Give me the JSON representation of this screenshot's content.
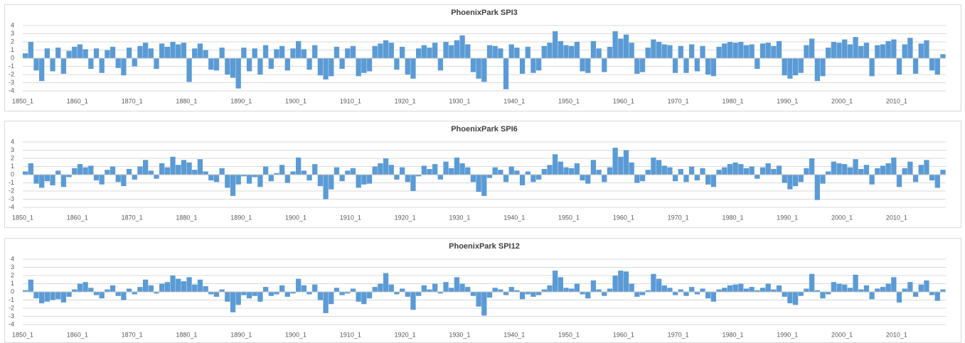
{
  "chart_data": [
    {
      "type": "bar",
      "title": "PhoenixPark SPI3",
      "color": "#5b9bd5",
      "ylim": [
        -4,
        4
      ],
      "yticks": [
        -4,
        -3,
        -2,
        -1,
        0,
        1,
        2,
        3,
        4
      ],
      "grid": true,
      "categories": [
        "1850_1",
        null,
        null,
        null,
        null,
        null,
        null,
        null,
        null,
        null,
        "1860_1",
        null,
        null,
        null,
        null,
        null,
        null,
        null,
        null,
        null,
        "1870_1",
        null,
        null,
        null,
        null,
        null,
        null,
        null,
        null,
        null,
        "1880_1",
        null,
        null,
        null,
        null,
        null,
        null,
        null,
        null,
        null,
        "1890_1",
        null,
        null,
        null,
        null,
        null,
        null,
        null,
        null,
        null,
        "1900_1",
        null,
        null,
        null,
        null,
        null,
        null,
        null,
        null,
        null,
        "1910_1",
        null,
        null,
        null,
        null,
        null,
        null,
        null,
        null,
        null,
        "1920_1",
        null,
        null,
        null,
        null,
        null,
        null,
        null,
        null,
        null,
        "1930_1",
        null,
        null,
        null,
        null,
        null,
        null,
        null,
        null,
        null,
        "1940_1",
        null,
        null,
        null,
        null,
        null,
        null,
        null,
        null,
        null,
        "1950_1",
        null,
        null,
        null,
        null,
        null,
        null,
        null,
        null,
        null,
        "1960_1",
        null,
        null,
        null,
        null,
        null,
        null,
        null,
        null,
        null,
        "1970_1",
        null,
        null,
        null,
        null,
        null,
        null,
        null,
        null,
        null,
        "1980_1",
        null,
        null,
        null,
        null,
        null,
        null,
        null,
        null,
        null,
        "1990_1",
        null,
        null,
        null,
        null,
        null,
        null,
        null,
        null,
        null,
        "2000_1",
        null,
        null,
        null,
        null,
        null,
        null,
        null,
        null,
        null,
        "2010_1",
        null,
        null,
        null,
        null,
        null,
        null,
        null,
        null
      ],
      "values": [
        0.6,
        2.0,
        -1.5,
        -2.8,
        1.2,
        -1.6,
        1.3,
        -1.9,
        0.9,
        1.4,
        1.7,
        1.1,
        -1.3,
        1.2,
        -1.8,
        1.0,
        1.4,
        -1.2,
        -2.1,
        1.3,
        -1.0,
        1.5,
        1.9,
        1.2,
        -1.3,
        1.8,
        1.4,
        2.0,
        1.7,
        1.9,
        -2.9,
        1.2,
        1.8,
        1.0,
        -1.4,
        -1.5,
        1.3,
        -2.0,
        -2.4,
        -3.7,
        1.3,
        -1.6,
        1.2,
        -2.0,
        1.6,
        -1.3,
        1.1,
        1.5,
        -1.5,
        1.2,
        2.1,
        1.1,
        -1.4,
        1.6,
        -2.1,
        -2.6,
        -2.2,
        1.4,
        -1.3,
        1.2,
        1.5,
        -2.2,
        -1.8,
        -1.6,
        1.5,
        1.8,
        2.2,
        1.9,
        -1.4,
        1.4,
        -2.0,
        -2.5,
        1.2,
        1.6,
        1.3,
        1.9,
        -1.5,
        2.0,
        1.6,
        2.2,
        2.8,
        1.7,
        -1.7,
        -2.5,
        -2.9,
        1.6,
        1.5,
        1.2,
        -3.8,
        1.7,
        1.3,
        -1.9,
        1.4,
        -1.8,
        -1.5,
        1.5,
        1.9,
        3.3,
        2.1,
        1.6,
        1.5,
        2.0,
        -1.6,
        -1.8,
        2.1,
        1.2,
        -1.7,
        1.4,
        3.3,
        2.4,
        2.9,
        1.9,
        -1.9,
        -1.7,
        1.3,
        2.3,
        2.0,
        1.7,
        1.6,
        -1.8,
        1.5,
        -1.8,
        1.7,
        -1.6,
        1.5,
        -2.0,
        -2.2,
        1.4,
        1.8,
        2.0,
        1.9,
        2.0,
        1.6,
        1.7,
        -1.3,
        1.8,
        1.9,
        1.5,
        2.1,
        -2.1,
        -2.5,
        -2.1,
        -1.8,
        1.6,
        2.4,
        -2.8,
        -2.2,
        1.3,
        2.0,
        1.9,
        2.3,
        1.7,
        2.6,
        1.5,
        1.9,
        -2.2,
        1.6,
        1.7,
        2.1,
        2.3,
        -2.0,
        1.7,
        2.5,
        -1.9,
        1.8,
        2.2,
        -1.5,
        -2.0,
        0.5
      ]
    },
    {
      "type": "bar",
      "title": "PhoenixPark SPI6",
      "color": "#5b9bd5",
      "ylim": [
        -4,
        4
      ],
      "yticks": [
        -4,
        -3,
        -2,
        -1,
        0,
        1,
        2,
        3,
        4
      ],
      "grid": true,
      "categories": [
        "1850_1",
        null,
        null,
        null,
        null,
        null,
        null,
        null,
        null,
        null,
        "1860_1",
        null,
        null,
        null,
        null,
        null,
        null,
        null,
        null,
        null,
        "1870_1",
        null,
        null,
        null,
        null,
        null,
        null,
        null,
        null,
        null,
        "1880_1",
        null,
        null,
        null,
        null,
        null,
        null,
        null,
        null,
        null,
        "1890_1",
        null,
        null,
        null,
        null,
        null,
        null,
        null,
        null,
        null,
        "1900_1",
        null,
        null,
        null,
        null,
        null,
        null,
        null,
        null,
        null,
        "1910_1",
        null,
        null,
        null,
        null,
        null,
        null,
        null,
        null,
        null,
        "1920_1",
        null,
        null,
        null,
        null,
        null,
        null,
        null,
        null,
        null,
        "1930_1",
        null,
        null,
        null,
        null,
        null,
        null,
        null,
        null,
        null,
        "1940_1",
        null,
        null,
        null,
        null,
        null,
        null,
        null,
        null,
        null,
        "1950_1",
        null,
        null,
        null,
        null,
        null,
        null,
        null,
        null,
        null,
        "1960_1",
        null,
        null,
        null,
        null,
        null,
        null,
        null,
        null,
        null,
        "1970_1",
        null,
        null,
        null,
        null,
        null,
        null,
        null,
        null,
        null,
        "1980_1",
        null,
        null,
        null,
        null,
        null,
        null,
        null,
        null,
        null,
        "1990_1",
        null,
        null,
        null,
        null,
        null,
        null,
        null,
        null,
        null,
        "2000_1",
        null,
        null,
        null,
        null,
        null,
        null,
        null,
        null,
        null,
        "2010_1",
        null,
        null,
        null,
        null,
        null,
        null,
        null,
        null
      ],
      "values": [
        0.4,
        1.4,
        -1.1,
        -1.6,
        -0.8,
        -1.3,
        0.5,
        -1.5,
        -0.3,
        0.8,
        1.3,
        0.9,
        1.1,
        -0.7,
        -1.2,
        0.6,
        1.0,
        -0.9,
        -1.4,
        0.7,
        -0.6,
        1.0,
        1.8,
        0.5,
        -0.5,
        1.4,
        0.9,
        2.2,
        1.2,
        1.8,
        1.5,
        0.6,
        1.9,
        0.4,
        -0.7,
        -0.9,
        0.8,
        -1.6,
        -2.6,
        -1.2,
        -0.2,
        -1.1,
        -0.3,
        -1.5,
        1.0,
        -0.8,
        0.2,
        1.2,
        -1.0,
        0.4,
        2.1,
        0.5,
        -0.7,
        1.3,
        -1.4,
        -3.0,
        -1.8,
        0.9,
        -0.8,
        0.5,
        0.8,
        -1.6,
        -1.2,
        -1.1,
        1.0,
        1.4,
        2.0,
        1.2,
        -0.6,
        0.9,
        -0.9,
        -2.0,
        -0.2,
        1.1,
        0.7,
        1.3,
        -0.6,
        1.6,
        0.8,
        2.1,
        1.4,
        0.9,
        -0.9,
        -2.1,
        -2.6,
        -0.4,
        0.9,
        0.6,
        -0.9,
        1.0,
        0.5,
        -1.3,
        0.4,
        -0.9,
        -0.6,
        0.7,
        1.2,
        2.5,
        1.6,
        0.9,
        0.8,
        1.4,
        -0.7,
        -1.1,
        1.8,
        0.6,
        -0.9,
        0.9,
        3.3,
        2.2,
        3.0,
        1.5,
        -1.0,
        -0.8,
        0.6,
        2.1,
        1.8,
        1.1,
        0.9,
        -0.8,
        0.7,
        -0.9,
        1.0,
        -0.7,
        0.8,
        -1.2,
        -1.5,
        0.6,
        0.9,
        1.3,
        1.5,
        1.3,
        0.8,
        1.0,
        -0.5,
        0.9,
        1.4,
        0.7,
        1.1,
        -1.0,
        -1.8,
        -1.4,
        -0.9,
        0.8,
        2.0,
        -3.1,
        -1.1,
        0.4,
        1.6,
        1.4,
        1.3,
        0.9,
        1.9,
        0.7,
        1.2,
        -1.2,
        0.8,
        1.1,
        1.4,
        2.1,
        -1.5,
        0.8,
        1.6,
        -0.9,
        1.2,
        1.8,
        -0.7,
        -1.6,
        0.6
      ]
    },
    {
      "type": "bar",
      "title": "PhoenixPark SPI12",
      "color": "#5b9bd5",
      "ylim": [
        -4,
        4
      ],
      "yticks": [
        -4,
        -3,
        -2,
        -1,
        0,
        1,
        2,
        3,
        4
      ],
      "grid": true,
      "categories": [
        "1850_1",
        null,
        null,
        null,
        null,
        null,
        null,
        null,
        null,
        null,
        "1860_1",
        null,
        null,
        null,
        null,
        null,
        null,
        null,
        null,
        null,
        "1870_1",
        null,
        null,
        null,
        null,
        null,
        null,
        null,
        null,
        null,
        "1880_1",
        null,
        null,
        null,
        null,
        null,
        null,
        null,
        null,
        null,
        "1890_1",
        null,
        null,
        null,
        null,
        null,
        null,
        null,
        null,
        null,
        "1900_1",
        null,
        null,
        null,
        null,
        null,
        null,
        null,
        null,
        null,
        "1910_1",
        null,
        null,
        null,
        null,
        null,
        null,
        null,
        null,
        null,
        "1920_1",
        null,
        null,
        null,
        null,
        null,
        null,
        null,
        null,
        null,
        "1930_1",
        null,
        null,
        null,
        null,
        null,
        null,
        null,
        null,
        null,
        "1940_1",
        null,
        null,
        null,
        null,
        null,
        null,
        null,
        null,
        null,
        "1950_1",
        null,
        null,
        null,
        null,
        null,
        null,
        null,
        null,
        null,
        "1960_1",
        null,
        null,
        null,
        null,
        null,
        null,
        null,
        null,
        null,
        "1970_1",
        null,
        null,
        null,
        null,
        null,
        null,
        null,
        null,
        null,
        "1980_1",
        null,
        null,
        null,
        null,
        null,
        null,
        null,
        null,
        null,
        "1990_1",
        null,
        null,
        null,
        null,
        null,
        null,
        null,
        null,
        null,
        "2000_1",
        null,
        null,
        null,
        null,
        null,
        null,
        null,
        null,
        null,
        "2010_1",
        null,
        null,
        null,
        null,
        null,
        null,
        null,
        null
      ],
      "values": [
        0.2,
        1.5,
        -0.8,
        -1.4,
        -1.2,
        -1.0,
        -0.9,
        -1.3,
        -0.6,
        0.3,
        1.0,
        1.2,
        0.5,
        -0.4,
        -0.8,
        0.3,
        0.8,
        -0.5,
        -1.0,
        0.4,
        -0.3,
        0.6,
        1.5,
        0.8,
        -0.2,
        1.0,
        1.2,
        2.0,
        1.6,
        1.3,
        1.8,
        0.9,
        1.5,
        0.7,
        -0.3,
        -0.6,
        0.3,
        -1.2,
        -2.5,
        -1.6,
        -0.4,
        -0.8,
        -0.5,
        -1.2,
        0.6,
        -0.5,
        -0.3,
        0.8,
        -0.6,
        -0.2,
        1.6,
        0.8,
        -0.3,
        0.9,
        -1.0,
        -2.6,
        -1.5,
        0.5,
        -0.4,
        -0.2,
        0.4,
        -1.2,
        -1.5,
        -0.8,
        0.6,
        1.0,
        2.3,
        0.9,
        -0.3,
        0.4,
        -0.6,
        -2.2,
        -0.5,
        0.8,
        0.3,
        1.0,
        -0.2,
        1.2,
        0.5,
        1.8,
        1.0,
        0.6,
        -0.5,
        -1.8,
        -2.9,
        -0.7,
        0.5,
        0.3,
        -0.4,
        0.6,
        0.2,
        -0.9,
        -0.3,
        -0.6,
        -0.4,
        0.3,
        0.8,
        2.6,
        1.8,
        0.5,
        0.4,
        1.0,
        -0.3,
        -0.8,
        1.4,
        0.3,
        -0.5,
        0.4,
        2.0,
        2.6,
        2.5,
        1.0,
        -0.6,
        -0.4,
        0.2,
        2.2,
        1.6,
        0.8,
        0.5,
        -0.4,
        0.3,
        -0.5,
        0.6,
        -0.3,
        0.4,
        -0.8,
        -1.2,
        0.3,
        0.5,
        0.8,
        0.9,
        1.0,
        0.4,
        0.6,
        0.2,
        0.5,
        1.0,
        0.3,
        0.8,
        -0.6,
        -1.4,
        -1.6,
        -0.5,
        0.4,
        2.2,
        0.2,
        -0.8,
        -0.3,
        1.2,
        1.0,
        0.9,
        0.5,
        2.1,
        0.3,
        0.8,
        -0.9,
        0.4,
        0.6,
        1.0,
        1.8,
        -1.3,
        0.4,
        1.2,
        -0.6,
        0.9,
        1.4,
        -0.4,
        -1.1,
        0.3
      ]
    }
  ]
}
